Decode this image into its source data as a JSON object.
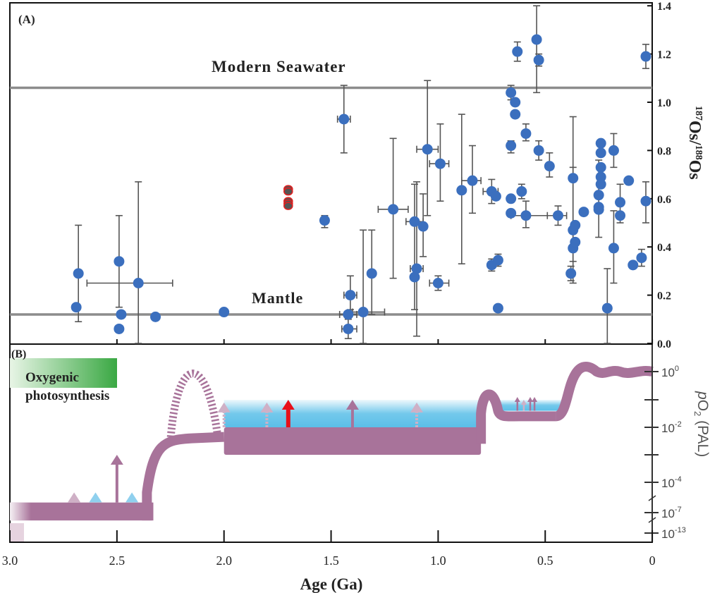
{
  "panel_a": {
    "label": "(A)",
    "seawater_label": "Modern Seawater",
    "mantle_label": "Mantle",
    "ylabel_pre1": "187",
    "ylabel_os1": "Os/",
    "ylabel_pre2": "188",
    "ylabel_os2": "Os"
  },
  "panel_b": {
    "label": "(B)",
    "box_line1": "Oxygenic",
    "box_line2": "photosynthesis",
    "ylabel_p": "p",
    "ylabel_o": "O",
    "ylabel_sub": "2",
    "ylabel_rest": " (PAL)"
  },
  "xlabel": "Age (Ga)",
  "chart_data": [
    {
      "type": "scatter",
      "panel": "A",
      "xlabel": "Age (Ga)",
      "ylabel": "187Os/188Os",
      "xlim": [
        3.0,
        0
      ],
      "ylim": [
        0.0,
        1.4
      ],
      "xticks": [
        "3.0",
        "2.5",
        "2.0",
        "1.5",
        "1.0",
        "0.5",
        "0"
      ],
      "yticks": [
        "0.0",
        "0.2",
        "0.4",
        "0.6",
        "0.8",
        "1.0",
        "1.2",
        "1.4"
      ],
      "reference_lines": [
        {
          "name": "Modern Seawater",
          "y": 1.06
        },
        {
          "name": "Mantle",
          "y": 0.12
        }
      ],
      "colors": {
        "points": "#3b6fbe",
        "highlight": "#e02020",
        "errorbar": "#555555",
        "reference": "#8c8c8c"
      },
      "series": [
        {
          "style": "filled-blue",
          "points": [
            {
              "x": 2.68,
              "y": 0.29,
              "yerr": [
                0.09,
                0.49
              ]
            },
            {
              "x": 2.69,
              "y": 0.15
            },
            {
              "x": 2.49,
              "y": 0.34,
              "yerr": [
                0.15,
                0.53
              ]
            },
            {
              "x": 2.48,
              "y": 0.12
            },
            {
              "x": 2.49,
              "y": 0.06
            },
            {
              "x": 2.4,
              "y": 0.25,
              "yerr": [
                0.0,
                0.67
              ],
              "xerr": [
                2.24,
                2.64
              ]
            },
            {
              "x": 2.32,
              "y": 0.11
            },
            {
              "x": 2.0,
              "y": 0.13
            },
            {
              "x": 1.53,
              "y": 0.51,
              "yerr": [
                0.48,
                0.53
              ]
            },
            {
              "x": 1.44,
              "y": 0.93,
              "yerr": [
                0.79,
                1.07
              ],
              "xerr": [
                1.41,
                1.47
              ]
            },
            {
              "x": 1.41,
              "y": 0.2,
              "yerr": [
                0.14,
                0.28
              ],
              "xerr": [
                1.38,
                1.44
              ]
            },
            {
              "x": 1.42,
              "y": 0.12,
              "xerr": [
                1.38,
                1.46
              ]
            },
            {
              "x": 1.42,
              "y": 0.06,
              "yerr": [
                0.02,
                0.1
              ],
              "xerr": [
                1.38,
                1.45
              ]
            },
            {
              "x": 1.35,
              "y": 0.13,
              "yerr": [
                0.0,
                0.47
              ],
              "xerr": [
                1.25,
                1.4
              ]
            },
            {
              "x": 1.31,
              "y": 0.29,
              "yerr": [
                0.12,
                0.47
              ]
            },
            {
              "x": 1.21,
              "y": 0.556,
              "yerr": [
                0.27,
                0.85
              ],
              "xerr": [
                1.14,
                1.28
              ]
            },
            {
              "x": 1.11,
              "y": 0.505,
              "yerr": [
                0.14,
                0.66
              ],
              "xerr": [
                1.07,
                1.15
              ]
            },
            {
              "x": 1.1,
              "y": 0.31,
              "yerr": [
                0.03,
                0.67
              ],
              "xerr": [
                1.07,
                1.13
              ]
            },
            {
              "x": 1.11,
              "y": 0.275
            },
            {
              "x": 1.07,
              "y": 0.485,
              "yerr": [
                0.36,
                0.62
              ]
            },
            {
              "x": 1.05,
              "y": 0.805,
              "yerr": [
                0.53,
                1.09
              ],
              "xerr": [
                1.0,
                1.1
              ]
            },
            {
              "x": 0.99,
              "y": 0.745,
              "yerr": [
                0.59,
                0.91
              ],
              "xerr": [
                0.95,
                1.04
              ]
            },
            {
              "x": 1.0,
              "y": 0.25,
              "yerr": [
                0.22,
                0.28
              ],
              "xerr": [
                0.95,
                1.04
              ]
            },
            {
              "x": 0.89,
              "y": 0.635,
              "yerr": [
                0.33,
                0.95
              ]
            },
            {
              "x": 0.84,
              "y": 0.675,
              "yerr": [
                0.54,
                0.82
              ],
              "xerr": [
                0.8,
                0.89
              ]
            },
            {
              "x": 0.75,
              "y": 0.63,
              "yerr": [
                0.58,
                0.68
              ],
              "xerr": [
                0.72,
                0.79
              ]
            },
            {
              "x": 0.73,
              "y": 0.61
            },
            {
              "x": 0.75,
              "y": 0.325,
              "yerr": [
                0.3,
                0.35
              ]
            },
            {
              "x": 0.72,
              "y": 0.345,
              "yerr": [
                0.32,
                0.37
              ]
            },
            {
              "x": 0.72,
              "y": 0.146
            },
            {
              "x": 0.66,
              "y": 1.04,
              "yerr": [
                1.01,
                1.07
              ]
            },
            {
              "x": 0.64,
              "y": 1.0
            },
            {
              "x": 0.64,
              "y": 0.95
            },
            {
              "x": 0.66,
              "y": 0.82,
              "yerr": [
                0.79,
                0.84
              ]
            },
            {
              "x": 0.66,
              "y": 0.6
            },
            {
              "x": 0.66,
              "y": 0.54
            },
            {
              "x": 0.63,
              "y": 1.21,
              "yerr": [
                1.17,
                1.25
              ]
            },
            {
              "x": 0.61,
              "y": 0.63,
              "yerr": [
                0.6,
                0.66
              ]
            },
            {
              "x": 0.59,
              "y": 0.87,
              "yerr": [
                0.84,
                0.91
              ]
            },
            {
              "x": 0.59,
              "y": 0.53,
              "yerr": [
                0.48,
                0.59
              ],
              "xerr": [
                0.45,
                0.66
              ]
            },
            {
              "x": 0.54,
              "y": 1.26,
              "yerr": [
                1.04,
                1.4
              ]
            },
            {
              "x": 0.53,
              "y": 1.175,
              "yerr": [
                1.15,
                1.2
              ]
            },
            {
              "x": 0.53,
              "y": 0.8,
              "yerr": [
                0.76,
                0.84
              ]
            },
            {
              "x": 0.48,
              "y": 0.735,
              "yerr": [
                0.69,
                0.79
              ]
            },
            {
              "x": 0.44,
              "y": 0.53,
              "yerr": [
                0.49,
                0.57
              ],
              "xerr": [
                0.4,
                0.49
              ]
            },
            {
              "x": 0.38,
              "y": 0.29,
              "yerr": [
                0.26,
                0.32
              ]
            },
            {
              "x": 0.37,
              "y": 0.685,
              "yerr": [
                0.25,
                0.94
              ]
            },
            {
              "x": 0.37,
              "y": 0.47,
              "yerr": [
                0.34,
                0.73
              ]
            },
            {
              "x": 0.36,
              "y": 0.49
            },
            {
              "x": 0.37,
              "y": 0.395
            },
            {
              "x": 0.36,
              "y": 0.42
            },
            {
              "x": 0.32,
              "y": 0.545
            },
            {
              "x": 0.24,
              "y": 0.83
            },
            {
              "x": 0.24,
              "y": 0.79
            },
            {
              "x": 0.24,
              "y": 0.73
            },
            {
              "x": 0.24,
              "y": 0.69
            },
            {
              "x": 0.24,
              "y": 0.66
            },
            {
              "x": 0.25,
              "y": 0.615,
              "yerr": [
                0.44,
                0.76
              ]
            },
            {
              "x": 0.25,
              "y": 0.565
            },
            {
              "x": 0.25,
              "y": 0.555
            },
            {
              "x": 0.21,
              "y": 0.146,
              "yerr": [
                0.0,
                0.31
              ]
            },
            {
              "x": 0.18,
              "y": 0.8,
              "yerr": [
                0.73,
                0.87
              ]
            },
            {
              "x": 0.18,
              "y": 0.395,
              "yerr": [
                0.25,
                0.55
              ]
            },
            {
              "x": 0.15,
              "y": 0.585,
              "yerr": [
                0.5,
                0.66
              ]
            },
            {
              "x": 0.15,
              "y": 0.53
            },
            {
              "x": 0.11,
              "y": 0.675
            },
            {
              "x": 0.09,
              "y": 0.325
            },
            {
              "x": 0.05,
              "y": 0.355,
              "yerr": [
                0.32,
                0.39
              ]
            },
            {
              "x": 0.03,
              "y": 0.59,
              "yerr": [
                0.5,
                0.67
              ]
            },
            {
              "x": 0.03,
              "y": 1.19,
              "yerr": [
                1.14,
                1.24
              ]
            }
          ]
        },
        {
          "style": "open-red",
          "points": [
            {
              "x": 1.7,
              "y": 0.64
            },
            {
              "x": 1.7,
              "y": 0.63
            },
            {
              "x": 1.7,
              "y": 0.59
            },
            {
              "x": 1.7,
              "y": 0.58
            },
            {
              "x": 1.7,
              "y": 0.57
            }
          ]
        }
      ]
    },
    {
      "type": "area",
      "panel": "B",
      "xlabel": "Age (Ga)",
      "ylabel": "pO2 (PAL)",
      "xlim": [
        3.0,
        0
      ],
      "yscale": "log (broken)",
      "yticks": [
        {
          "log": 0,
          "label": "0"
        },
        {
          "log": -1,
          "label": ""
        },
        {
          "log": -2,
          "label": "-2"
        },
        {
          "log": -3,
          "label": ""
        },
        {
          "log": -4,
          "label": "-4"
        },
        {
          "log": -7,
          "label": "-7"
        },
        {
          "log": -13,
          "label": "-13"
        }
      ],
      "colors": {
        "band": "#a8739a",
        "shading": "#5bbfe8",
        "arrow_solid": "#a8739a",
        "arrow_faded": "#cfb0c6",
        "arrow_blue": "#8fd0ee",
        "arrow_red": "#e8101a",
        "box": "#3aa843"
      },
      "bands": [
        {
          "age": [
            3.0,
            2.33
          ],
          "log_range": [
            -9.3,
            -6.0
          ]
        },
        {
          "age": [
            2.33,
            2.0
          ],
          "log_range": [
            -2.7,
            -2.35
          ]
        },
        {
          "age": [
            2.0,
            0.8
          ],
          "log_range": [
            -3.0,
            -2.0
          ]
        },
        {
          "age": [
            0.72,
            0.42
          ],
          "log_range": [
            -1.8,
            -1.4
          ]
        },
        {
          "age": [
            0.32,
            0.0
          ],
          "log_range": [
            -0.2,
            0.15
          ]
        }
      ],
      "overshoot": {
        "age": [
          2.25,
          2.03
        ],
        "peak_age": 2.15,
        "peak_log": 0.2,
        "style": "dashed"
      },
      "bump": {
        "age": 0.75,
        "peak_log": -0.8
      },
      "shading": [
        {
          "age": [
            2.0,
            0.8
          ],
          "log_range": [
            -2.0,
            -1.0
          ]
        },
        {
          "age": [
            0.72,
            0.42
          ],
          "log_range": [
            -1.4,
            -1.0
          ]
        }
      ],
      "arrows": [
        {
          "age": 2.7,
          "style": "faded",
          "from": -6.0,
          "to": -5.0
        },
        {
          "age": 2.6,
          "style": "blue",
          "from": -6.0,
          "to": -5.0
        },
        {
          "age": 2.5,
          "style": "solid",
          "from": -6.0,
          "to": -3.0
        },
        {
          "age": 2.43,
          "style": "blue",
          "from": -6.0,
          "to": -5.0
        },
        {
          "age": 2.0,
          "style": "faded",
          "from": -2.0,
          "to": -1.1
        },
        {
          "age": 1.8,
          "style": "faded",
          "from": -2.0,
          "to": -1.1
        },
        {
          "age": 1.7,
          "style": "red",
          "from": -2.0,
          "to": -1.0
        },
        {
          "age": 1.4,
          "style": "solid",
          "from": -2.0,
          "to": -1.0
        },
        {
          "age": 1.1,
          "style": "faded",
          "from": -2.0,
          "to": -1.1
        },
        {
          "age": 0.63,
          "style": "solid-small",
          "from": -1.4,
          "to": -0.9
        },
        {
          "age": 0.6,
          "style": "faded-small",
          "from": -1.4,
          "to": -1.0
        },
        {
          "age": 0.57,
          "style": "solid-small",
          "from": -1.4,
          "to": -0.9
        },
        {
          "age": 0.55,
          "style": "solid-small",
          "from": -1.4,
          "to": -0.9
        }
      ]
    }
  ]
}
